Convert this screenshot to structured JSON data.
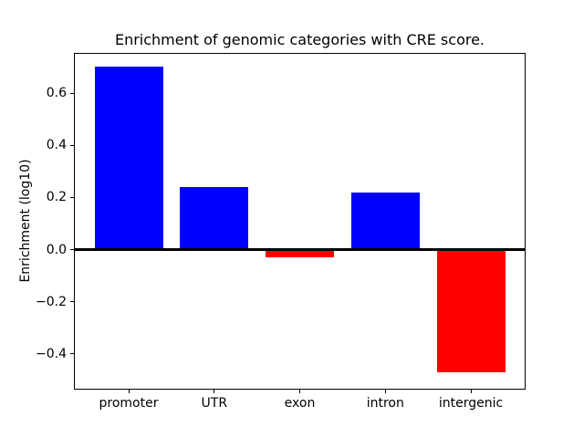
{
  "figure": {
    "title": "Enrichment of genomic categories with CRE score.",
    "ylabel": "Enrichment (log10)"
  },
  "chart_data": {
    "type": "bar",
    "title": "Enrichment of genomic categories with CRE score.",
    "xlabel": "",
    "ylabel": "Enrichment (log10)",
    "categories": [
      "promoter",
      "UTR",
      "exon",
      "intron",
      "intergenic"
    ],
    "values": [
      0.7,
      0.24,
      -0.03,
      0.22,
      -0.47
    ],
    "bar_colors": [
      "#0000ff",
      "#0000ff",
      "#ff0000",
      "#0000ff",
      "#ff0000"
    ],
    "positive_color": "#0000ff",
    "negative_color": "#ff0000",
    "ylim": [
      -0.537,
      0.754
    ],
    "yticks": [
      0.6,
      0.4,
      0.2,
      0.0,
      -0.2,
      -0.4
    ],
    "ytick_labels": [
      "0.6",
      "0.4",
      "0.2",
      "0.0",
      "−0.2",
      "−0.4"
    ],
    "bar_width_fraction": 0.8,
    "grid": false,
    "legend": false,
    "zero_line": true,
    "background_color": "#ffffff"
  }
}
